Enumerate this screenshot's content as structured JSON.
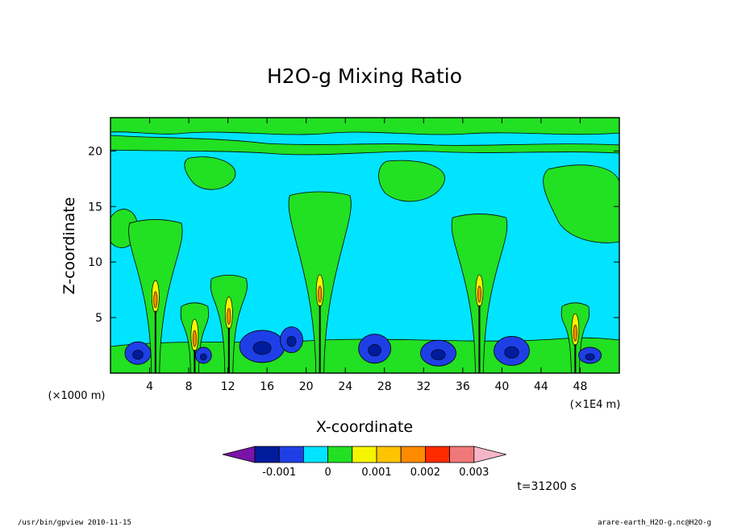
{
  "chart_data": {
    "type": "heatmap",
    "title": "H2O-g Mixing Ratio",
    "xlabel": "X-coordinate",
    "ylabel": "Z-coordinate",
    "x_unit": "(×1E4 m)",
    "y_unit": "(×1000 m)",
    "xlim": [
      0,
      52
    ],
    "ylim": [
      0,
      23
    ],
    "x_ticks": [
      4,
      8,
      12,
      16,
      20,
      24,
      28,
      32,
      36,
      40,
      44,
      48
    ],
    "y_ticks": [
      5,
      10,
      15,
      20
    ],
    "colorbar": {
      "levels": [
        -0.0015,
        -0.001,
        -0.0005,
        0,
        0.0005,
        0.001,
        0.0015,
        0.002,
        0.0025,
        0.003,
        0.0035
      ],
      "labels": [
        "-0.001",
        "0",
        "0.001",
        "0.002",
        "0.003"
      ],
      "colors": [
        "#7a14a8",
        "#001c9c",
        "#1f3fe6",
        "#00e4ff",
        "#22e022",
        "#f5f500",
        "#ffc400",
        "#ff8c00",
        "#ff2a00",
        "#f07878",
        "#f5b6c8"
      ]
    },
    "plumes": [
      {
        "x": 4.6,
        "top_z": 13.5,
        "core_z": 8.5
      },
      {
        "x": 8.6,
        "top_z": 6.0,
        "core_z": 5.0
      },
      {
        "x": 12.1,
        "top_z": 8.5,
        "core_z": 7.0
      },
      {
        "x": 21.4,
        "top_z": 16.0,
        "core_z": 9.0
      },
      {
        "x": 37.7,
        "top_z": 14.0,
        "core_z": 9.0
      },
      {
        "x": 47.5,
        "top_z": 6.0,
        "core_z": 5.5
      }
    ],
    "grid": false,
    "legend": "bottom"
  },
  "footer": {
    "time": "t=31200 s",
    "left_info": "/usr/bin/gpview   2010-11-15",
    "right_info": "arare-earth_H2O-g.nc@H2O-g"
  }
}
